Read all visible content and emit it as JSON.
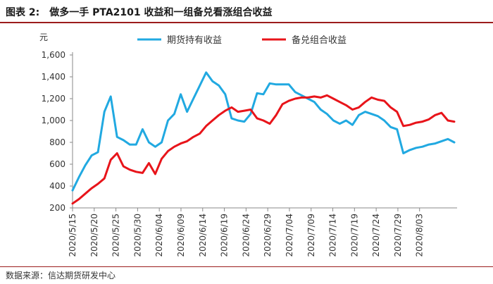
{
  "figure": {
    "label": "图表 2:",
    "title": "做多一手 PTA2101 收益和一组备兑看涨组合收益",
    "source": "数据来源：信达期货研发中心",
    "rule_color": "#9b1c1c"
  },
  "chart_data": {
    "type": "line",
    "title": "",
    "xlabel": "",
    "ylabel": "元",
    "ylim": [
      200,
      1600
    ],
    "yticks": [
      200,
      400,
      600,
      800,
      1000,
      1200,
      1400,
      1600
    ],
    "ytick_labels": [
      "200",
      "400",
      "600",
      "800",
      "1,000",
      "1,200",
      "1,400",
      "1,600"
    ],
    "grid": false,
    "legend_position": "top-center",
    "x": [
      "2020/5/15",
      "2020/5/18",
      "2020/5/19",
      "2020/5/20",
      "2020/5/21",
      "2020/5/22",
      "2020/5/25",
      "2020/5/26",
      "2020/5/27",
      "2020/5/28",
      "2020/5/29",
      "2020/6/1",
      "2020/6/2",
      "2020/6/3",
      "2020/6/4",
      "2020/6/5",
      "2020/6/8",
      "2020/6/9",
      "2020/6/10",
      "2020/6/11",
      "2020/6/12",
      "2020/6/15",
      "2020/6/16",
      "2020/6/17",
      "2020/6/18",
      "2020/6/19",
      "2020/6/22",
      "2020/6/23",
      "2020/6/24",
      "2020/6/29",
      "2020/6/30",
      "2020/7/1",
      "2020/7/2",
      "2020/7/3",
      "2020/7/6",
      "2020/7/7",
      "2020/7/8",
      "2020/7/9",
      "2020/7/10",
      "2020/7/13",
      "2020/7/14",
      "2020/7/15",
      "2020/7/16",
      "2020/7/17",
      "2020/7/20",
      "2020/7/21",
      "2020/7/22",
      "2020/7/23",
      "2020/7/24",
      "2020/7/27",
      "2020/7/28",
      "2020/7/29",
      "2020/7/30",
      "2020/7/31",
      "2020/8/3",
      "2020/8/4",
      "2020/8/5",
      "2020/8/6",
      "2020/8/7",
      "2020/8/10",
      "2020/8/11"
    ],
    "xtick_labels": [
      "2020/5/15",
      "2020/5/20",
      "2020/5/25",
      "2020/5/30",
      "2020/6/04",
      "2020/6/09",
      "2020/6/14",
      "2020/6/19",
      "2020/6/24",
      "2020/6/29",
      "2020/7/04",
      "2020/7/09",
      "2020/7/14",
      "2020/7/19",
      "2020/7/24",
      "2020/7/29",
      "2020/8/03"
    ],
    "series": [
      {
        "name": "期货持有收益",
        "color": "#21a9e1",
        "values": [
          360,
          480,
          590,
          680,
          710,
          1080,
          1220,
          850,
          820,
          780,
          780,
          920,
          800,
          760,
          800,
          1000,
          1060,
          1240,
          1080,
          1200,
          1320,
          1440,
          1360,
          1320,
          1240,
          1020,
          1000,
          990,
          1060,
          1250,
          1240,
          1340,
          1330,
          1330,
          1330,
          1260,
          1230,
          1200,
          1170,
          1100,
          1060,
          1000,
          970,
          1000,
          960,
          1050,
          1080,
          1060,
          1040,
          1000,
          940,
          920,
          700,
          730,
          750,
          760,
          780,
          790,
          810,
          830,
          800
        ]
      },
      {
        "name": "备兑组合收益",
        "color": "#e8141a",
        "values": [
          240,
          280,
          330,
          380,
          420,
          470,
          640,
          700,
          580,
          550,
          530,
          520,
          610,
          510,
          650,
          720,
          760,
          790,
          810,
          850,
          880,
          950,
          1000,
          1050,
          1090,
          1120,
          1080,
          1090,
          1100,
          1020,
          1000,
          970,
          1050,
          1150,
          1180,
          1200,
          1210,
          1210,
          1220,
          1210,
          1230,
          1200,
          1170,
          1140,
          1100,
          1120,
          1170,
          1210,
          1190,
          1180,
          1120,
          1080,
          950,
          960,
          980,
          990,
          1010,
          1050,
          1070,
          1000,
          990
        ]
      }
    ]
  }
}
